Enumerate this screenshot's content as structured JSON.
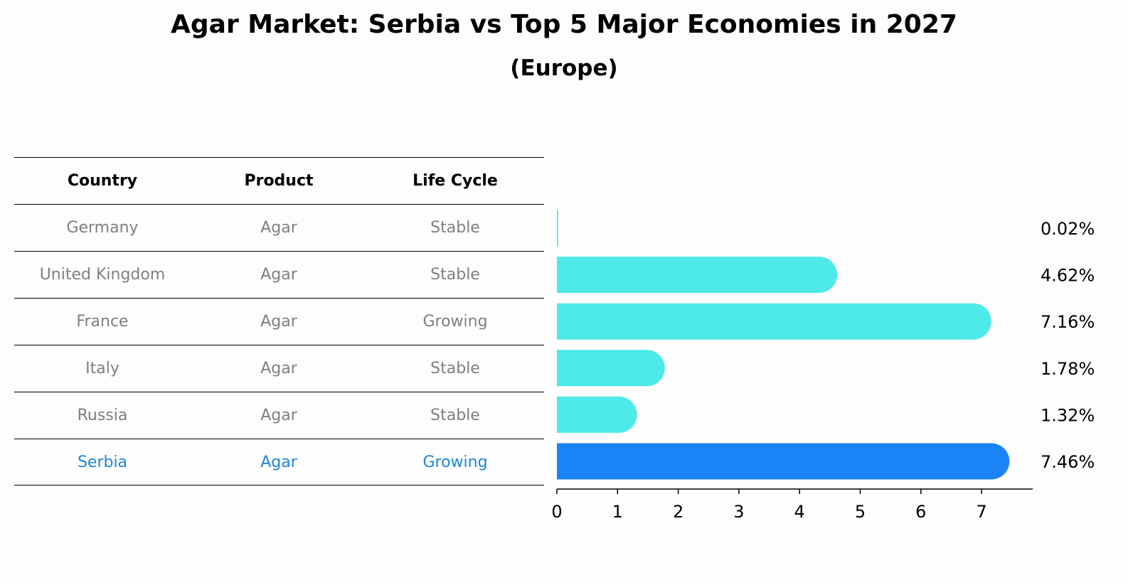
{
  "title": "Agar Market: Serbia vs Top 5 Major Economies in 2027",
  "subtitle": "(Europe)",
  "table": {
    "headers": [
      "Country",
      "Product",
      "Life Cycle"
    ],
    "rows": [
      [
        "Germany",
        "Agar",
        "Stable"
      ],
      [
        "United Kingdom",
        "Agar",
        "Stable"
      ],
      [
        "France",
        "Agar",
        "Growing"
      ],
      [
        "Italy",
        "Agar",
        "Stable"
      ],
      [
        "Russia",
        "Agar",
        "Stable"
      ],
      [
        "Serbia",
        "Agar",
        "Growing"
      ]
    ],
    "highlight_row": 5
  },
  "chart_data": {
    "type": "bar",
    "orientation": "horizontal",
    "categories": [
      "Germany",
      "United Kingdom",
      "France",
      "Italy",
      "Russia",
      "Serbia"
    ],
    "values": [
      0.02,
      4.62,
      7.16,
      1.78,
      1.32,
      7.46
    ],
    "value_labels": [
      "0.02%",
      "4.62%",
      "7.16%",
      "1.78%",
      "1.32%",
      "7.46%"
    ],
    "xlim": [
      0,
      7.8
    ],
    "xticks": [
      0,
      1,
      2,
      3,
      4,
      5,
      6,
      7
    ],
    "colors": {
      "default": "#4deae9",
      "highlight": "#1a84f6"
    },
    "highlight_index": 5
  }
}
